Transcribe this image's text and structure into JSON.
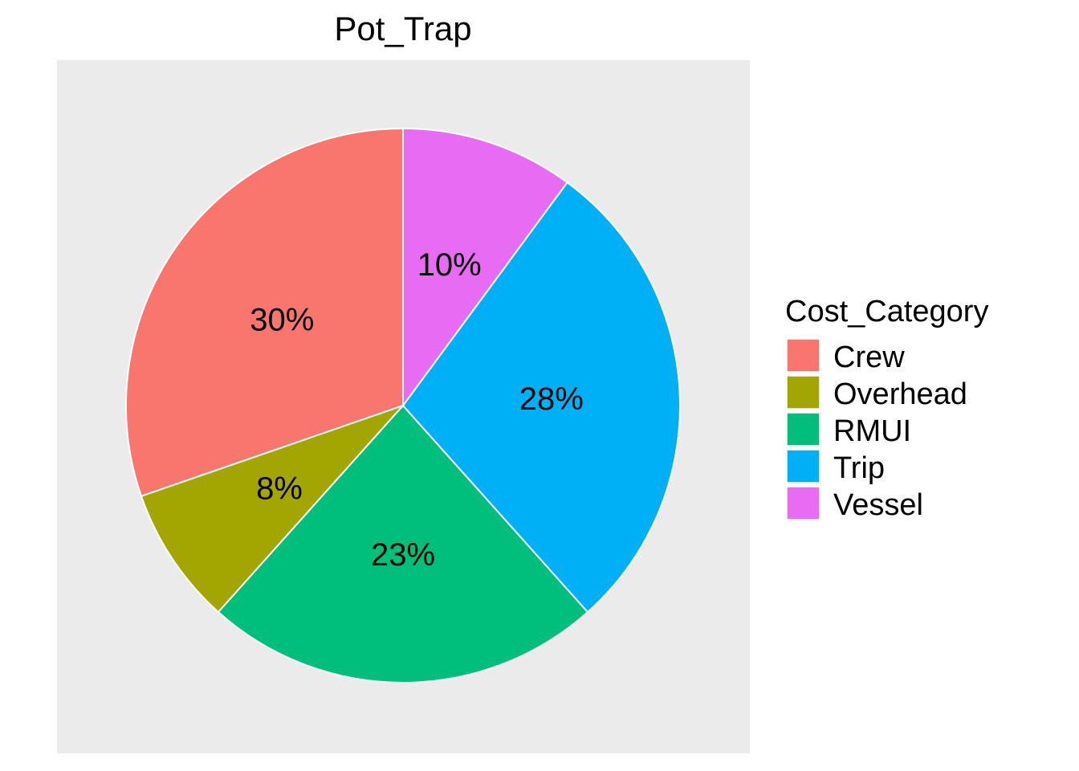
{
  "chart_data": {
    "type": "pie",
    "title": "Pot_Trap",
    "legend_title": "Cost_Category",
    "legend_position": "right",
    "slices": [
      {
        "name": "Crew",
        "value": 30,
        "label": "30%",
        "color": "#F8766D"
      },
      {
        "name": "Overhead",
        "value": 8,
        "label": "8%",
        "color": "#A3A500"
      },
      {
        "name": "RMUI",
        "value": 23,
        "label": "23%",
        "color": "#00BF7D"
      },
      {
        "name": "Trip",
        "value": 28,
        "label": "28%",
        "color": "#00B0F6"
      },
      {
        "name": "Vessel",
        "value": 10,
        "label": "10%",
        "color": "#E76BF3"
      }
    ],
    "panel_background": "#EBEBEB"
  }
}
